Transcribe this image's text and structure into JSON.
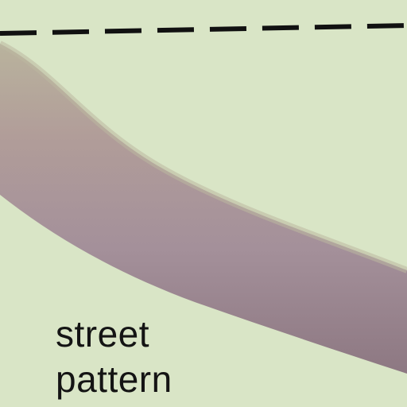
{
  "map": {
    "label_lines": [
      "street",
      "pattern"
    ],
    "colors": {
      "background": "#d9e5c6",
      "street_band_edge": "#b3ac98",
      "street_band_mid": "#a8929a",
      "street_band_inner": "#8f7a83",
      "boundary_line": "#111111"
    },
    "features": {
      "boundary_line_style": "dashed",
      "street_band": "curved"
    }
  }
}
